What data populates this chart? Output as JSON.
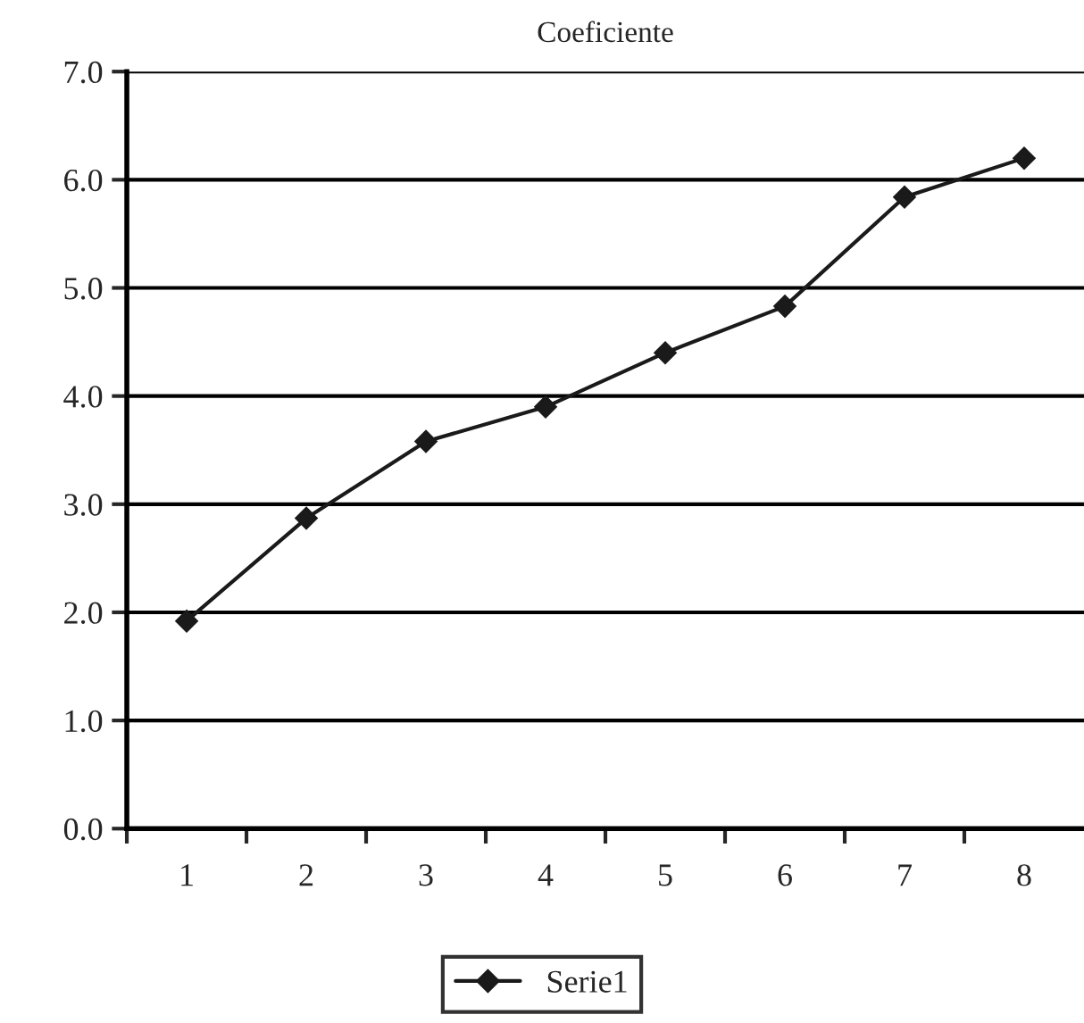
{
  "chart_data": {
    "type": "line",
    "title": "Coeficiente",
    "categories": [
      "1",
      "2",
      "3",
      "4",
      "5",
      "6",
      "7",
      "8"
    ],
    "series": [
      {
        "name": "Serie1",
        "color": "#1a1a1a",
        "values": [
          1.92,
          2.87,
          3.58,
          3.9,
          4.4,
          4.83,
          5.84,
          6.2
        ]
      }
    ],
    "ylim": [
      0,
      7
    ],
    "yticks": [
      {
        "value": 0,
        "label": "0.0"
      },
      {
        "value": 1,
        "label": "1.0"
      },
      {
        "value": 2,
        "label": "2.0"
      },
      {
        "value": 3,
        "label": "3.0"
      },
      {
        "value": 4,
        "label": "4.0"
      },
      {
        "value": 5,
        "label": "5.0"
      },
      {
        "value": 6,
        "label": "6.0"
      },
      {
        "value": 7,
        "label": "7.0"
      }
    ],
    "grid": "y",
    "legend": "bottom",
    "marker": "diamond",
    "line_style": "solid"
  }
}
